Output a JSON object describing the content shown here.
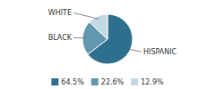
{
  "chart_data": {
    "type": "pie",
    "categories": [
      "HISPANIC",
      "BLACK",
      "WHITE"
    ],
    "values": [
      64.5,
      22.6,
      12.9
    ],
    "value_labels": [
      "64.5%",
      "22.6%",
      "12.9%"
    ],
    "colors": [
      "#2d6f8d",
      "#6198b0",
      "#c2d8e2"
    ],
    "legend": "bottom"
  }
}
